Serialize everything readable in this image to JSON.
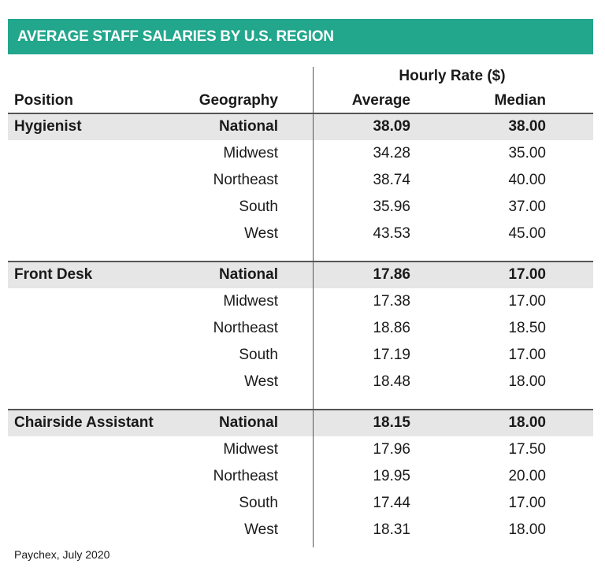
{
  "header": {
    "title": "AVERAGE STAFF SALARIES BY U.S. REGION"
  },
  "table": {
    "group_header": "Hourly Rate ($)",
    "columns": [
      "Position",
      "Geography",
      "Average",
      "Median"
    ],
    "sections": [
      {
        "position": "Hygienist",
        "rows": [
          [
            "National",
            "38.09",
            "38.00"
          ],
          [
            "Midwest",
            "34.28",
            "35.00"
          ],
          [
            "Northeast",
            "38.74",
            "40.00"
          ],
          [
            "South",
            "35.96",
            "37.00"
          ],
          [
            "West",
            "43.53",
            "45.00"
          ]
        ]
      },
      {
        "position": "Front Desk",
        "rows": [
          [
            "National",
            "17.86",
            "17.00"
          ],
          [
            "Midwest",
            "17.38",
            "17.00"
          ],
          [
            "Northeast",
            "18.86",
            "18.50"
          ],
          [
            "South",
            "17.19",
            "17.00"
          ],
          [
            "West",
            "18.48",
            "18.00"
          ]
        ]
      },
      {
        "position": "Chairside Assistant",
        "rows": [
          [
            "National",
            "18.15",
            "18.00"
          ],
          [
            "Midwest",
            "17.96",
            "17.50"
          ],
          [
            "Northeast",
            "19.95",
            "20.00"
          ],
          [
            "South",
            "17.44",
            "17.00"
          ],
          [
            "West",
            "18.31",
            "18.00"
          ]
        ]
      }
    ]
  },
  "source": "Paychex, July 2020"
}
